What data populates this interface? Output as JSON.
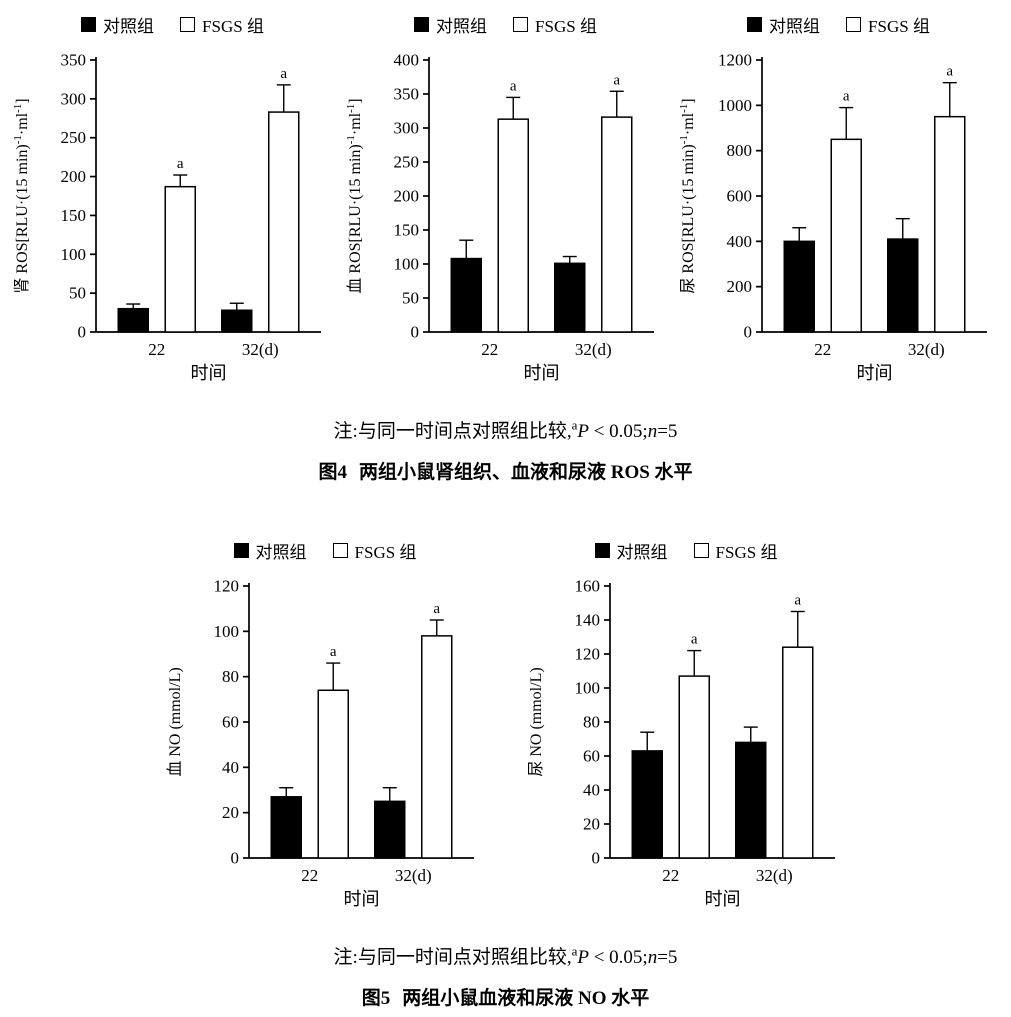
{
  "colors": {
    "control_fill": "#000000",
    "fsgs_fill": "#ffffff",
    "axis": "#000000",
    "background": "#ffffff"
  },
  "figure4": {
    "note": {
      "prefix": "注:与同一时间点对照组比较,",
      "sup_marker": "a",
      "p_symbol": "P",
      "p_value": " < 0.05;",
      "n_symbol": "n",
      "n_value": "=5"
    },
    "caption_label": "图4",
    "caption_text": "两组小鼠肾组织、血液和尿液 ROS 水平"
  },
  "figure5": {
    "note": {
      "prefix": "注:与同一时间点对照组比较,",
      "sup_marker": "a",
      "p_symbol": "P",
      "p_value": " < 0.05;",
      "n_symbol": "n",
      "n_value": "=5"
    },
    "caption_label": "图5",
    "caption_text": "两组小鼠血液和尿液 NO 水平"
  },
  "chart_data": [
    {
      "id": "kidney-ros",
      "type": "bar",
      "title": "",
      "xlabel": "时间",
      "ylabel": "肾 ROS[RLU·(15 min)⁻¹·ml⁻¹]",
      "ylabel_parts": [
        {
          "text": "肾 ROS[RLU·(15 min)",
          "sup": false
        },
        {
          "text": "-1",
          "sup": true
        },
        {
          "text": "·ml",
          "sup": false
        },
        {
          "text": "-1",
          "sup": true
        },
        {
          "text": "]",
          "sup": false
        }
      ],
      "categories": [
        "22",
        "32(d)"
      ],
      "ylim": [
        0,
        350
      ],
      "ytick_step": 50,
      "grid": false,
      "legend_position": "top",
      "series": [
        {
          "key": "control",
          "name": "对照组",
          "color": "#000000",
          "values": [
            30,
            28
          ],
          "errors": [
            6,
            9
          ],
          "annotations": [
            "",
            ""
          ]
        },
        {
          "key": "fsgs",
          "name": "FSGS 组",
          "color": "#ffffff",
          "values": [
            187,
            283
          ],
          "errors": [
            15,
            35
          ],
          "annotations": [
            "a",
            "a"
          ]
        }
      ]
    },
    {
      "id": "blood-ros",
      "type": "bar",
      "title": "",
      "xlabel": "时间",
      "ylabel": "血 ROS[RLU·(15 min)⁻¹·ml⁻¹]",
      "ylabel_parts": [
        {
          "text": "血 ROS[RLU·(15 min)",
          "sup": false
        },
        {
          "text": "-1",
          "sup": true
        },
        {
          "text": "·ml",
          "sup": false
        },
        {
          "text": "-1",
          "sup": true
        },
        {
          "text": "]",
          "sup": false
        }
      ],
      "categories": [
        "22",
        "32(d)"
      ],
      "ylim": [
        0,
        400
      ],
      "ytick_step": 50,
      "grid": false,
      "legend_position": "top",
      "series": [
        {
          "key": "control",
          "name": "对照组",
          "color": "#000000",
          "values": [
            108,
            101
          ],
          "errors": [
            27,
            10
          ],
          "annotations": [
            "",
            ""
          ]
        },
        {
          "key": "fsgs",
          "name": "FSGS 组",
          "color": "#ffffff",
          "values": [
            313,
            316
          ],
          "errors": [
            32,
            38
          ],
          "annotations": [
            "a",
            "a"
          ]
        }
      ]
    },
    {
      "id": "urine-ros",
      "type": "bar",
      "title": "",
      "xlabel": "时间",
      "ylabel": "尿 ROS[RLU·(15 min)⁻¹·ml⁻¹]",
      "ylabel_parts": [
        {
          "text": "尿 ROS[RLU·(15 min)",
          "sup": false
        },
        {
          "text": "-1",
          "sup": true
        },
        {
          "text": "·ml",
          "sup": false
        },
        {
          "text": "-1",
          "sup": true
        },
        {
          "text": "]",
          "sup": false
        }
      ],
      "categories": [
        "22",
        "32(d)"
      ],
      "ylim": [
        0,
        1200
      ],
      "ytick_step": 200,
      "grid": false,
      "legend_position": "top",
      "series": [
        {
          "key": "control",
          "name": "对照组",
          "color": "#000000",
          "values": [
            400,
            410
          ],
          "errors": [
            60,
            90
          ],
          "annotations": [
            "",
            ""
          ]
        },
        {
          "key": "fsgs",
          "name": "FSGS 组",
          "color": "#ffffff",
          "values": [
            850,
            950
          ],
          "errors": [
            140,
            150
          ],
          "annotations": [
            "a",
            "a"
          ]
        }
      ]
    },
    {
      "id": "blood-no",
      "type": "bar",
      "title": "",
      "xlabel": "时间",
      "ylabel": "血 NO (mmol/L)",
      "ylabel_parts": [
        {
          "text": "血 NO (mmol/L)",
          "sup": false
        }
      ],
      "categories": [
        "22",
        "32(d)"
      ],
      "ylim": [
        0,
        120
      ],
      "ytick_step": 20,
      "grid": false,
      "legend_position": "top",
      "series": [
        {
          "key": "control",
          "name": "对照组",
          "color": "#000000",
          "values": [
            27,
            25
          ],
          "errors": [
            4,
            6
          ],
          "annotations": [
            "",
            ""
          ]
        },
        {
          "key": "fsgs",
          "name": "FSGS 组",
          "color": "#ffffff",
          "values": [
            74,
            98
          ],
          "errors": [
            12,
            7
          ],
          "annotations": [
            "a",
            "a"
          ]
        }
      ]
    },
    {
      "id": "urine-no",
      "type": "bar",
      "title": "",
      "xlabel": "时间",
      "ylabel": "尿 NO (mmol/L)",
      "ylabel_parts": [
        {
          "text": "尿 NO (mmol/L)",
          "sup": false
        }
      ],
      "categories": [
        "22",
        "32(d)"
      ],
      "ylim": [
        0,
        160
      ],
      "ytick_step": 20,
      "grid": false,
      "legend_position": "top",
      "series": [
        {
          "key": "control",
          "name": "对照组",
          "color": "#000000",
          "values": [
            63,
            68
          ],
          "errors": [
            11,
            9
          ],
          "annotations": [
            "",
            ""
          ]
        },
        {
          "key": "fsgs",
          "name": "FSGS 组",
          "color": "#ffffff",
          "values": [
            107,
            124
          ],
          "errors": [
            15,
            21
          ],
          "annotations": [
            "a",
            "a"
          ]
        }
      ]
    }
  ]
}
